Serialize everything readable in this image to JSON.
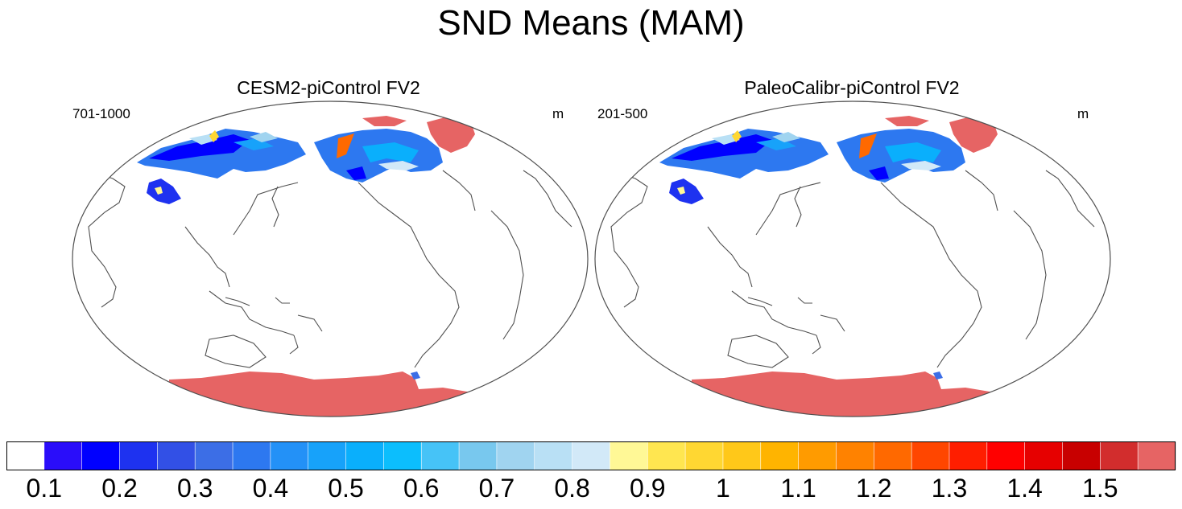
{
  "title": "SND Means (MAM)",
  "panels": [
    {
      "title": "CESM2-piControl FV2",
      "years": "701-1000",
      "units": "m"
    },
    {
      "title": "PaleoCalibr-piControl FV2",
      "years": "201-500",
      "units": "m"
    }
  ],
  "colorbar": {
    "labels": [
      "0.1",
      "0.2",
      "0.3",
      "0.4",
      "0.5",
      "0.6",
      "0.7",
      "0.8",
      "0.9",
      "1",
      "1.1",
      "1.2",
      "1.3",
      "1.4",
      "1.5"
    ],
    "colors": [
      "#ffffff",
      "#2a0dfa",
      "#0000ff",
      "#1e32f0",
      "#3250e6",
      "#3c6ee6",
      "#2d78f0",
      "#2391f7",
      "#17a2fa",
      "#0aaffc",
      "#0cbefd",
      "#46c3f7",
      "#78c8ee",
      "#a0d4f0",
      "#b9e0f5",
      "#d2e9f8",
      "#fff896",
      "#ffe650",
      "#ffd732",
      "#ffc819",
      "#ffb400",
      "#ff9b00",
      "#ff8200",
      "#ff6900",
      "#ff4600",
      "#ff1e00",
      "#ff0000",
      "#e60000",
      "#c80000",
      "#d22d2d",
      "#e66464"
    ]
  },
  "legend_colors": {
    "snow_deep": "#e66464",
    "coast": "#505050"
  }
}
